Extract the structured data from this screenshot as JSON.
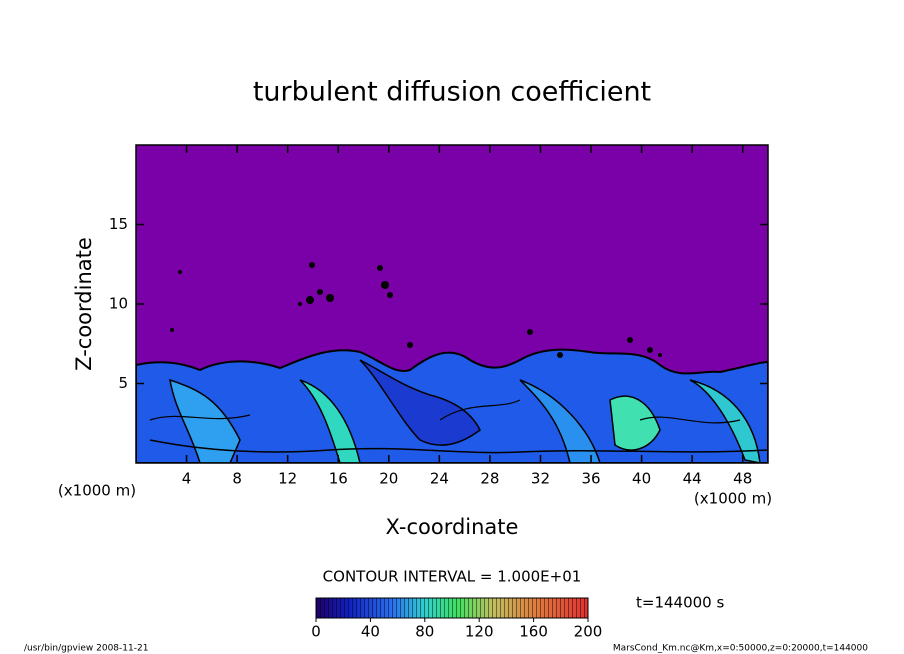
{
  "chart_data": {
    "type": "contour",
    "title": "turbulent diffusion coefficient",
    "xlabel": "X-coordinate",
    "ylabel": "Z-coordinate",
    "xunit": "(x1000 m)",
    "yunit": "(x1000 m)",
    "xlim": [
      0,
      50
    ],
    "xticks": [
      4,
      8,
      12,
      16,
      20,
      24,
      28,
      32,
      36,
      40,
      44,
      48
    ],
    "ylim": [
      0,
      20
    ],
    "yticks": [
      5,
      10,
      15
    ],
    "contour_interval": "CONTOUR INTERVAL = 1.000E+01",
    "time_label": "t=144000 s",
    "colorbar": {
      "lim": [
        0,
        200
      ],
      "ticks": [
        0,
        40,
        80,
        120,
        160,
        200
      ]
    },
    "footer_left": "/usr/bin/gpview   2008-11-21",
    "footer_right": "MarsCond_Km.nc@Km,x=0:50000,z=0:20000,t=144000"
  }
}
